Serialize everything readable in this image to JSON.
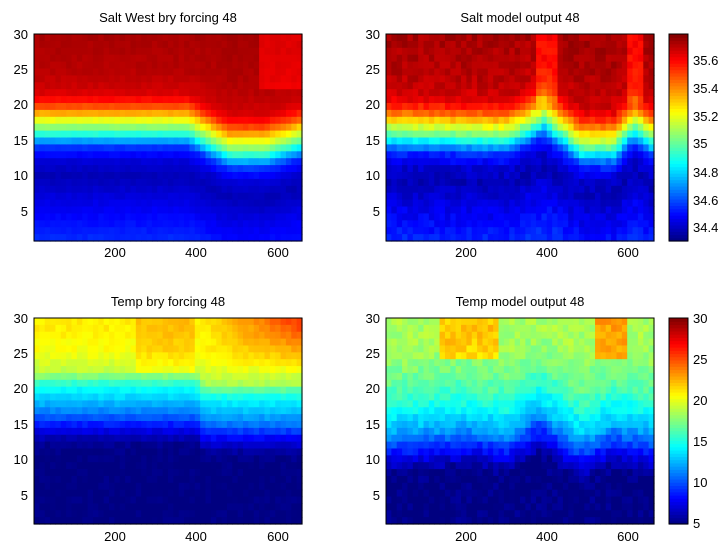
{
  "figure": {
    "background": "#ffffff"
  },
  "chart_data": [
    {
      "type": "heatmap",
      "title": "Salt West bry forcing 48",
      "x_range": [
        1,
        660
      ],
      "y_range": [
        1,
        30
      ],
      "x_ticks": [
        200,
        400,
        600
      ],
      "y_ticks": [
        5,
        10,
        15,
        20,
        25,
        30
      ],
      "field": "salt",
      "variant": "forcing",
      "value_range": [
        34.3,
        35.8
      ],
      "colormap": "jet",
      "colorbar": false,
      "depth_profile": {
        "levels": [
          1,
          5,
          10,
          12,
          14,
          15,
          16,
          17,
          18,
          19,
          20,
          21,
          22,
          25,
          30
        ],
        "values": [
          34.55,
          34.48,
          34.38,
          34.42,
          34.55,
          34.72,
          34.92,
          35.08,
          35.22,
          35.38,
          35.52,
          35.62,
          35.68,
          35.72,
          35.74
        ]
      },
      "transition_depth": [
        {
          "x": 0,
          "y": 19.5
        },
        {
          "x": 380,
          "y": 19.5
        },
        {
          "x": 480,
          "y": 16.5
        },
        {
          "x": 570,
          "y": 16.5
        },
        {
          "x": 660,
          "y": 18
        }
      ]
    },
    {
      "type": "heatmap",
      "title": "Salt model output 48",
      "x_range": [
        1,
        660
      ],
      "y_range": [
        1,
        30
      ],
      "x_ticks": [
        200,
        400,
        600
      ],
      "y_ticks": [
        5,
        10,
        15,
        20,
        25,
        30
      ],
      "field": "salt",
      "variant": "model",
      "value_range": [
        34.3,
        35.8
      ],
      "colormap": "jet",
      "colorbar": true,
      "colorbar_ticks": [
        "34.4",
        "34.6",
        "34.8",
        "35",
        "35.2",
        "35.4",
        "35.6"
      ],
      "depth_profile": {
        "levels": [
          1,
          5,
          10,
          12,
          14,
          15,
          16,
          17,
          18,
          19,
          20,
          21,
          22,
          25,
          30
        ],
        "values": [
          34.55,
          34.48,
          34.38,
          34.42,
          34.55,
          34.72,
          34.92,
          35.08,
          35.22,
          35.38,
          35.52,
          35.62,
          35.68,
          35.72,
          35.74
        ]
      },
      "transition_depth": [
        {
          "x": 0,
          "y": 19
        },
        {
          "x": 300,
          "y": 18.5
        },
        {
          "x": 390,
          "y": 21
        },
        {
          "x": 480,
          "y": 17
        },
        {
          "x": 560,
          "y": 17
        },
        {
          "x": 610,
          "y": 20
        },
        {
          "x": 660,
          "y": 18
        }
      ]
    },
    {
      "type": "heatmap",
      "title": "Temp bry forcing 48",
      "x_range": [
        1,
        660
      ],
      "y_range": [
        1,
        30
      ],
      "x_ticks": [
        200,
        400,
        600
      ],
      "y_ticks": [
        5,
        10,
        15,
        20,
        25,
        30
      ],
      "field": "temp",
      "variant": "forcing",
      "value_range": [
        5,
        30
      ],
      "colormap": "jet",
      "colorbar": false,
      "depth_profile": {
        "levels": [
          1,
          5,
          10,
          12,
          14,
          16,
          18,
          20,
          21,
          22,
          25,
          28,
          30
        ],
        "values": [
          5,
          5,
          5,
          5.5,
          8,
          11,
          13,
          15,
          17,
          19,
          20.5,
          21,
          21
        ]
      },
      "transition_depth": [
        {
          "x": 0,
          "y": 21.5
        },
        {
          "x": 200,
          "y": 21.5
        },
        {
          "x": 400,
          "y": 21.5
        },
        {
          "x": 420,
          "y": 20
        },
        {
          "x": 660,
          "y": 20
        }
      ]
    },
    {
      "type": "heatmap",
      "title": "Temp model output 48",
      "x_range": [
        1,
        660
      ],
      "y_range": [
        1,
        30
      ],
      "x_ticks": [
        200,
        400,
        600
      ],
      "y_ticks": [
        5,
        10,
        15,
        20,
        25,
        30
      ],
      "field": "temp",
      "variant": "model",
      "value_range": [
        5,
        30
      ],
      "colormap": "jet",
      "colorbar": true,
      "colorbar_ticks": [
        "5",
        "10",
        "15",
        "20",
        "25",
        "30"
      ],
      "depth_profile": {
        "levels": [
          1,
          5,
          10,
          12,
          14,
          16,
          18,
          20,
          22,
          25,
          28,
          30
        ],
        "values": [
          5,
          5,
          5,
          5.5,
          7.5,
          10,
          12.5,
          14,
          15.5,
          17,
          18,
          18.5
        ]
      },
      "transition_depth": [
        {
          "x": 0,
          "y": 17
        },
        {
          "x": 200,
          "y": 18
        },
        {
          "x": 300,
          "y": 17
        },
        {
          "x": 380,
          "y": 20
        },
        {
          "x": 480,
          "y": 16
        },
        {
          "x": 560,
          "y": 18
        },
        {
          "x": 660,
          "y": 17
        }
      ]
    }
  ]
}
